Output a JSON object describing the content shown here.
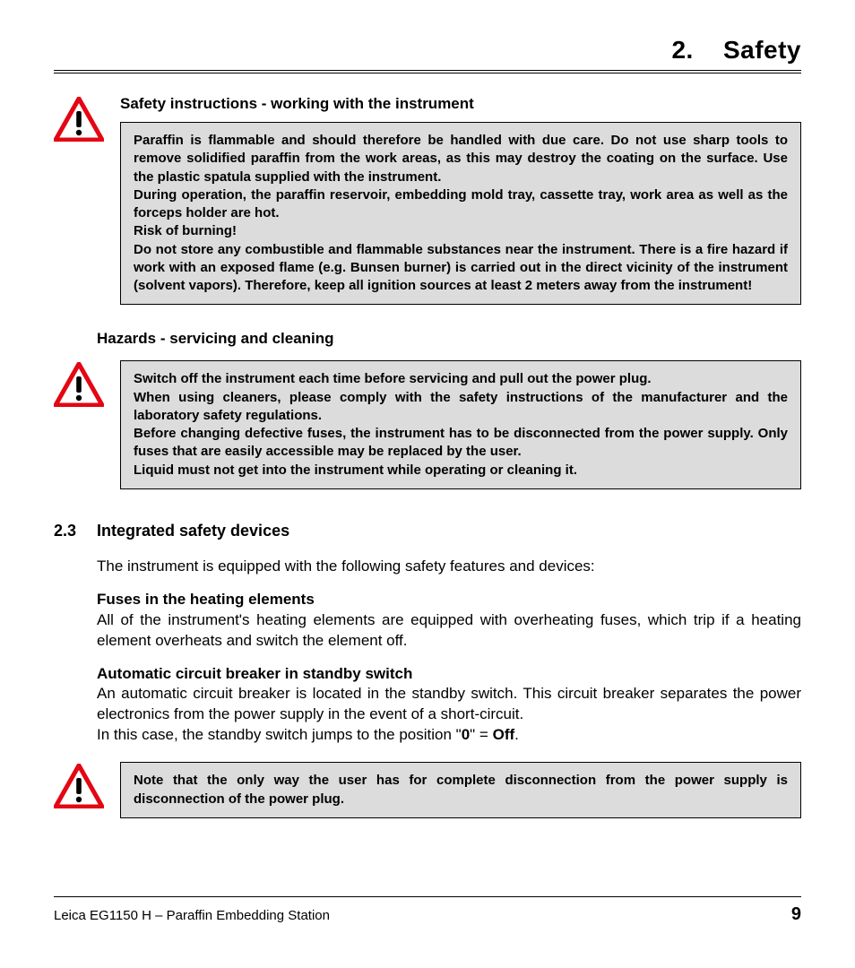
{
  "chapter": {
    "number": "2.",
    "title": "Safety"
  },
  "section1": {
    "heading": "Safety instructions - working with the instrument",
    "box": "Paraffin is flammable and should therefore be handled with due care. Do not use sharp tools to remove solidified paraffin from the work areas, as this may destroy the coating on the surface. Use the plastic spatula supplied with the instrument.\nDuring operation, the paraffin reservoir, embedding mold tray, cassette tray, work area as well as the forceps holder are hot.\nRisk of burning!\nDo not store any combustible and flammable substances near the instrument. There is a fire hazard if work with an exposed flame (e.g. Bunsen burner) is carried out in the direct vicinity of the instrument (solvent vapors). Therefore, keep all ignition sources at least 2 meters away from the instrument!"
  },
  "section2": {
    "heading": "Hazards - servicing and cleaning",
    "box": "Switch off the instrument each time before servicing and pull out the power plug.\nWhen using cleaners, please comply with the safety instructions of the manufacturer and the laboratory safety regulations.\nBefore changing defective fuses, the instrument has to be disconnected from the power supply. Only fuses that are easily accessible may be replaced by the user.\nLiquid must not get into the instrument while operating or cleaning it."
  },
  "section3": {
    "number": "2.3",
    "title": "Integrated safety devices",
    "intro": "The instrument is equipped with the following safety features and devices:",
    "sub1_title": "Fuses in the heating elements",
    "sub1_text": "All of the instrument's heating elements are equipped with overheating fuses, which trip if a heating element overheats and switch the element off.",
    "sub2_title": "Automatic circuit breaker in standby switch",
    "sub2_text1": "An automatic circuit breaker is located in the standby switch. This circuit breaker separates the power electronics from the power supply in the event of a short-circuit.",
    "sub2_text2_pre": "In this case, the standby switch jumps to the position \"",
    "sub2_zero": "0",
    "sub2_mid": "\" = ",
    "sub2_off": "Off",
    "sub2_post": ".",
    "box": "Note that the only way the user has for complete disconnection from the power supply is disconnection of the power plug."
  },
  "footer": {
    "product": "Leica EG1150 H – Paraffin Embedding Station",
    "page": "9"
  },
  "colors": {
    "warn_stroke": "#e30613",
    "warn_fill": "#ffffff",
    "text": "#000000",
    "box_bg": "#dcdcdc"
  }
}
